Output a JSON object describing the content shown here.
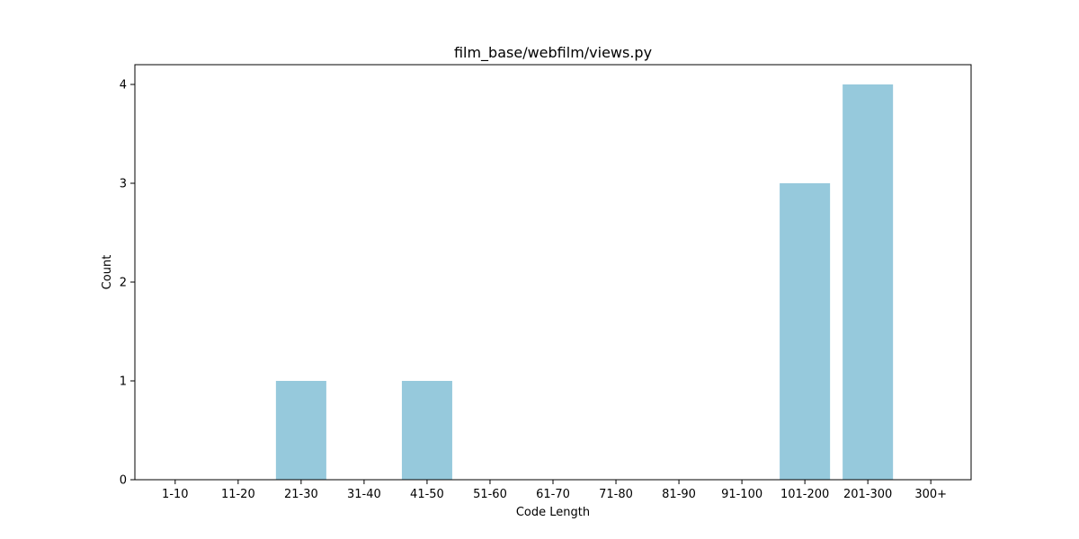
{
  "chart_data": {
    "type": "bar",
    "title": "film_base/webfilm/views.py",
    "xlabel": "Code Length",
    "ylabel": "Count",
    "categories": [
      "1-10",
      "11-20",
      "21-30",
      "31-40",
      "41-50",
      "51-60",
      "61-70",
      "71-80",
      "81-90",
      "91-100",
      "101-200",
      "201-300",
      "300+"
    ],
    "values": [
      0,
      0,
      1,
      0,
      1,
      0,
      0,
      0,
      0,
      0,
      3,
      4,
      0
    ],
    "ylim": [
      0,
      4.2
    ],
    "yticks": [
      0,
      1,
      2,
      3,
      4
    ],
    "bar_color": "#96c9dc",
    "grid": false,
    "legend": "none"
  }
}
